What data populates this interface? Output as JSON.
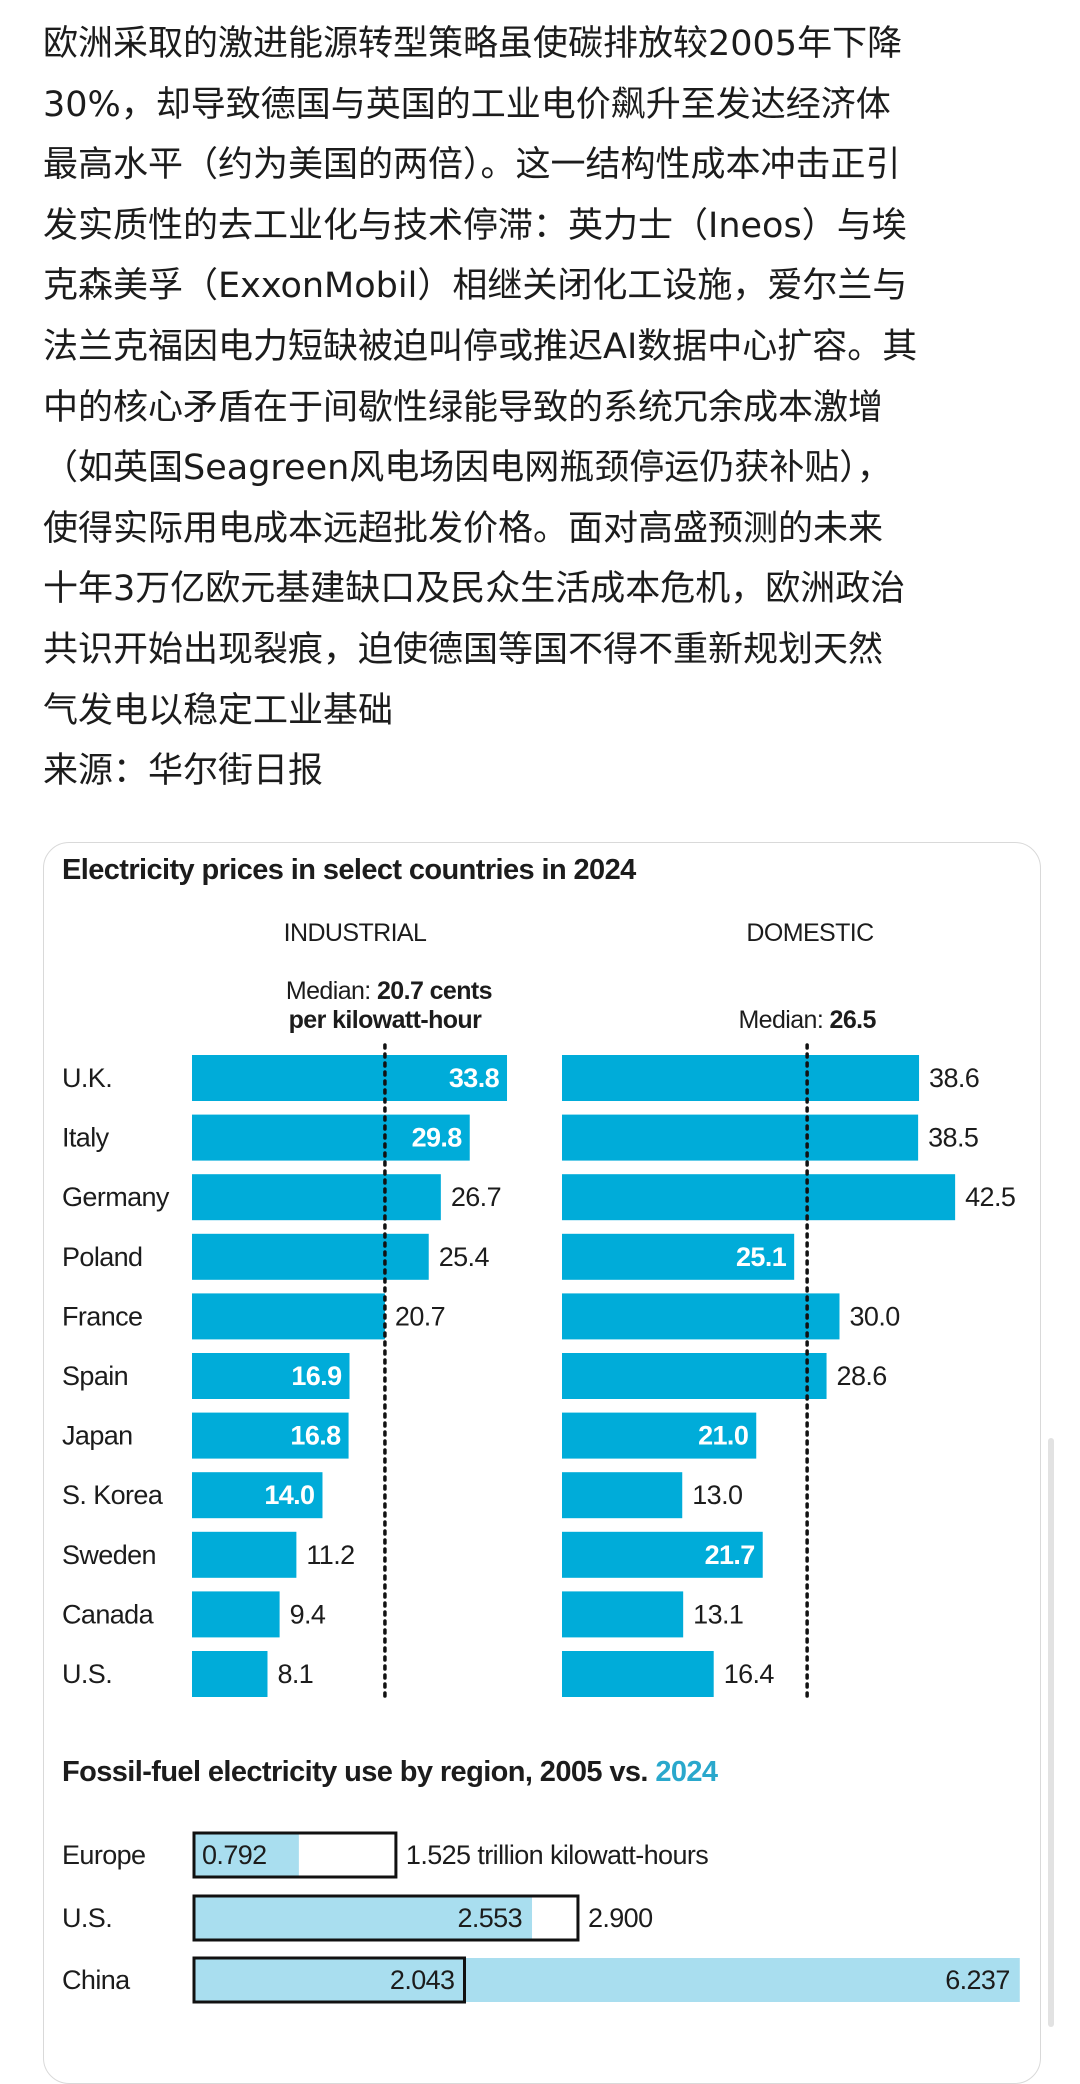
{
  "post": {
    "lines": [
      "欧洲采取的激进能源转型策略虽使碳排放较2005年下降",
      "30%，却导致德国与英国的工业电价飙升至发达经济体",
      "最高水平（约为美国的两倍）。这一结构性成本冲击正引",
      "发实质性的去工业化与技术停滞：英力士（Ineos）与埃",
      "克森美孚（ExxonMobil）相继关闭化工设施，爱尔兰与",
      "法兰克福因电力短缺被迫叫停或推迟AI数据中心扩容。其",
      "中的核心矛盾在于间歇性绿能导致的系统冗余成本激增",
      "（如英国Seagreen风电场因电网瓶颈停运仍获补贴），",
      "使得实际用电成本远超批发价格。面对高盛预测的未来",
      "十年3万亿欧元基建缺口及民众生活成本危机，欧洲政治",
      "共识开始出现裂痕，迫使德国等国不得不重新规划天然",
      "气发电以稳定工业基础",
      "来源：华尔街日报"
    ]
  },
  "colors": {
    "bar": "#00acd9",
    "fossil_fill": "#a9deef",
    "accent_text": "#2aa8cc",
    "text": "#1c1c1c"
  },
  "chart_data": [
    {
      "type": "bar",
      "title": "Electricity prices in select countries in 2024",
      "categories": [
        "U.K.",
        "Italy",
        "Germany",
        "Poland",
        "France",
        "Spain",
        "Japan",
        "S. Korea",
        "Sweden",
        "Canada",
        "U.S."
      ],
      "series": [
        {
          "name": "INDUSTRIAL",
          "values": [
            33.8,
            29.8,
            26.7,
            25.4,
            20.7,
            16.9,
            16.8,
            14.0,
            11.2,
            9.4,
            8.1
          ],
          "labels": [
            "33.8",
            "29.8",
            "26.7",
            "25.4",
            "20.7",
            "16.9",
            "16.8",
            "14.0",
            "11.2",
            "9.4",
            "8.1"
          ],
          "label_inside": [
            true,
            true,
            false,
            false,
            false,
            true,
            true,
            true,
            false,
            false,
            false
          ],
          "median": 20.7,
          "median_label_prefix": "Median: ",
          "median_label_value": "20.7 cents",
          "median_label_line2": "per kilowatt-hour"
        },
        {
          "name": "DOMESTIC",
          "values": [
            38.6,
            38.5,
            42.5,
            25.1,
            30.0,
            28.6,
            21.0,
            13.0,
            21.7,
            13.1,
            16.4
          ],
          "labels": [
            "38.6",
            "38.5",
            "42.5",
            "25.1",
            "30.0",
            "28.6",
            "21.0",
            "13.0",
            "21.7",
            "13.1",
            "16.4"
          ],
          "label_inside": [
            false,
            false,
            false,
            true,
            false,
            false,
            true,
            false,
            true,
            false,
            false
          ],
          "median": 26.5,
          "median_label_prefix": "Median: ",
          "median_label_value": "26.5"
        }
      ]
    },
    {
      "type": "bar",
      "title": "Fossil-fuel electricity use by region, 2005 vs. ",
      "title_highlight": "2024",
      "categories": [
        "Europe",
        "U.S.",
        "China"
      ],
      "series": [
        {
          "name": "2005",
          "values": [
            1.525,
            2.9,
            2.043
          ],
          "labels": [
            "1.525 trillion kilowatt-hours",
            "2.900",
            "2.043"
          ]
        },
        {
          "name": "2024",
          "values": [
            0.792,
            2.553,
            6.237
          ],
          "labels": [
            "0.792",
            "2.553",
            "6.237"
          ]
        }
      ]
    }
  ]
}
